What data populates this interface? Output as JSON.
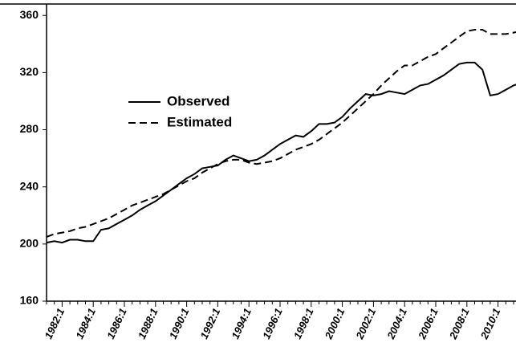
{
  "chart_data": {
    "type": "line",
    "categories": [
      null,
      null,
      "1982:1",
      null,
      null,
      null,
      "1984:1",
      null,
      null,
      null,
      "1986:1",
      null,
      null,
      null,
      "1988:1",
      null,
      null,
      null,
      "1990:1",
      null,
      null,
      null,
      "1992:1",
      null,
      null,
      null,
      "1994:1",
      null,
      null,
      null,
      "1996:1",
      null,
      null,
      null,
      "1998:1",
      null,
      null,
      null,
      "2000:1",
      null,
      null,
      null,
      "2002:1",
      null,
      null,
      null,
      "2004:1",
      null,
      null,
      null,
      "2006:1",
      null,
      null,
      null,
      "2008:1",
      null,
      null,
      null,
      "2010:1",
      null,
      null,
      null
    ],
    "series": [
      {
        "name": "Observed",
        "color": "#000000",
        "dash": false,
        "values": [
          201,
          202,
          201,
          203,
          203,
          202,
          202,
          210,
          211,
          214,
          217,
          220,
          224,
          227,
          230,
          234,
          238,
          242,
          246,
          249,
          253,
          254,
          255,
          259,
          262,
          260,
          258,
          259,
          262,
          266,
          270,
          273,
          276,
          275,
          279,
          284,
          284,
          285,
          289,
          295,
          300,
          305,
          304,
          305,
          307,
          306,
          305,
          308,
          311,
          312,
          315,
          318,
          322,
          326,
          327,
          327,
          322,
          304,
          305,
          308,
          311,
          313
        ]
      },
      {
        "name": "Estimated",
        "color": "#000000",
        "dash": true,
        "values": [
          205,
          207,
          208,
          209,
          211,
          212,
          214,
          216,
          218,
          221,
          224,
          227,
          229,
          231,
          233,
          235,
          238,
          241,
          244,
          246,
          250,
          253,
          256,
          258,
          259,
          259,
          257,
          256,
          257,
          258,
          260,
          263,
          266,
          268,
          270,
          273,
          277,
          281,
          285,
          290,
          295,
          300,
          305,
          311,
          316,
          321,
          325,
          325,
          328,
          331,
          333,
          337,
          341,
          345,
          349,
          350,
          350,
          347,
          347,
          347,
          348,
          349
        ]
      }
    ],
    "ylim": [
      160,
      368
    ],
    "yticks": [
      160,
      200,
      240,
      280,
      320,
      360
    ]
  }
}
